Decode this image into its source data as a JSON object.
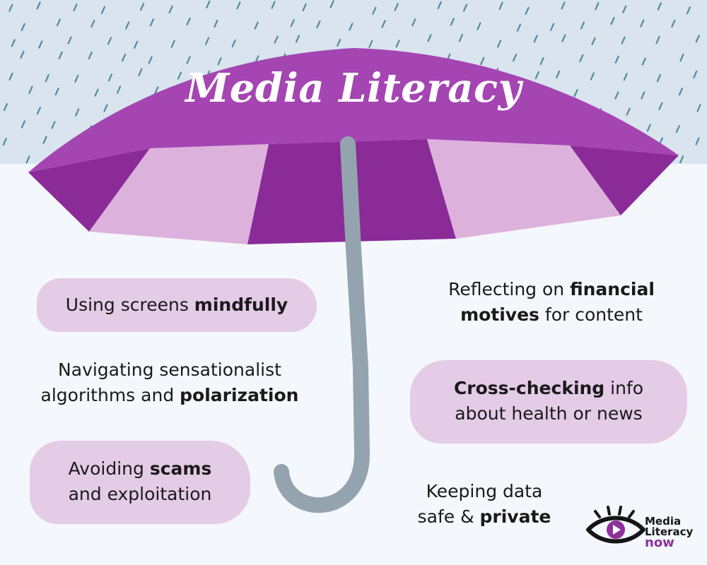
{
  "title": "Media Literacy",
  "colors": {
    "sky": "#d9e4ef",
    "background": "#f4f7fc",
    "umbrella_top": "#a445b2",
    "umbrella_dark": "#8b2b98",
    "umbrella_light": "#dcb2dc",
    "handle": "#94a4ae",
    "rain": "#4f8d95",
    "blob": "#e4cbe6",
    "logo_accent": "#8e2f9a"
  },
  "items": [
    {
      "pre": "Using screens ",
      "bold": "mindfully",
      "post": ""
    },
    {
      "pre": "Navigating sensationalist algorithms and ",
      "bold": "polarization",
      "post": ""
    },
    {
      "pre": "Avoiding ",
      "bold": "scams",
      "post": " and exploitation"
    },
    {
      "pre": "Reflecting on ",
      "bold": "financial motives",
      "post": " for content"
    },
    {
      "pre": "",
      "bold": "Cross-checking",
      "post": " info about health or news"
    },
    {
      "pre": "Keeping data safe & ",
      "bold": "private",
      "post": ""
    }
  ],
  "lines": {
    "i0_a": "Using screens ",
    "i0_b": "mindfully",
    "i1_l1": "Navigating sensationalist",
    "i1_l2a": "algorithms and ",
    "i1_l2b": "polarization",
    "i2_l1a": "Avoiding ",
    "i2_l1b": "scams",
    "i2_l2": "and exploitation",
    "i3_l1a": "Reflecting on ",
    "i3_l1b": "financial",
    "i3_l2a": "motives",
    "i3_l2b": " for content",
    "i4_l1a": "Cross-checking",
    "i4_l1b": " info",
    "i4_l2": "about health or news",
    "i5_l1": "Keeping data",
    "i5_l2a": "safe & ",
    "i5_l2b": "private"
  },
  "logo": {
    "line1": "Media",
    "line2": "Literacy",
    "line3": "now",
    "icon": "eye-play-icon"
  }
}
